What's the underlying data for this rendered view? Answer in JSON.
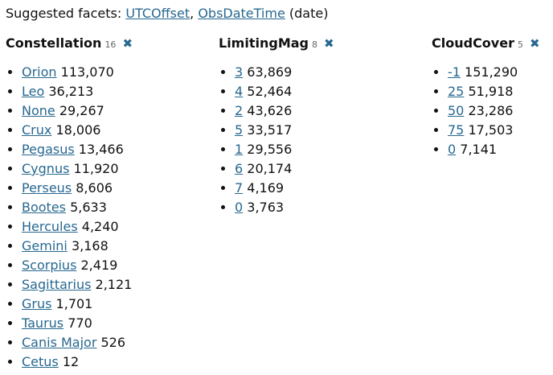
{
  "suggested": {
    "prefix": "Suggested facets:",
    "links": [
      "UTCOffset",
      "ObsDateTime"
    ],
    "separator": ",",
    "suffix": "(date)"
  },
  "remove_glyph": "✖",
  "facets": [
    {
      "title": "Constellation",
      "count": "16",
      "items": [
        {
          "label": "Orion",
          "count": "113,070"
        },
        {
          "label": "Leo",
          "count": "36,213"
        },
        {
          "label": "None",
          "count": "29,267"
        },
        {
          "label": "Crux",
          "count": "18,006"
        },
        {
          "label": "Pegasus",
          "count": "13,466"
        },
        {
          "label": "Cygnus",
          "count": "11,920"
        },
        {
          "label": "Perseus",
          "count": "8,606"
        },
        {
          "label": "Bootes",
          "count": "5,633"
        },
        {
          "label": "Hercules",
          "count": "4,240"
        },
        {
          "label": "Gemini",
          "count": "3,168"
        },
        {
          "label": "Scorpius",
          "count": "2,419"
        },
        {
          "label": "Sagittarius",
          "count": "2,121"
        },
        {
          "label": "Grus",
          "count": "1,701"
        },
        {
          "label": "Taurus",
          "count": "770"
        },
        {
          "label": "Canis Major",
          "count": "526"
        },
        {
          "label": "Cetus",
          "count": "12"
        }
      ]
    },
    {
      "title": "LimitingMag",
      "count": "8",
      "items": [
        {
          "label": "3",
          "count": "63,869"
        },
        {
          "label": "4",
          "count": "52,464"
        },
        {
          "label": "2",
          "count": "43,626"
        },
        {
          "label": "5",
          "count": "33,517"
        },
        {
          "label": "1",
          "count": "29,556"
        },
        {
          "label": "6",
          "count": "20,174"
        },
        {
          "label": "7",
          "count": "4,169"
        },
        {
          "label": "0",
          "count": "3,763"
        }
      ]
    },
    {
      "title": "CloudCover",
      "count": "5",
      "items": [
        {
          "label": "-1",
          "count": "151,290"
        },
        {
          "label": "25",
          "count": "51,918"
        },
        {
          "label": "50",
          "count": "23,286"
        },
        {
          "label": "75",
          "count": "17,503"
        },
        {
          "label": "0",
          "count": "7,141"
        }
      ]
    }
  ]
}
